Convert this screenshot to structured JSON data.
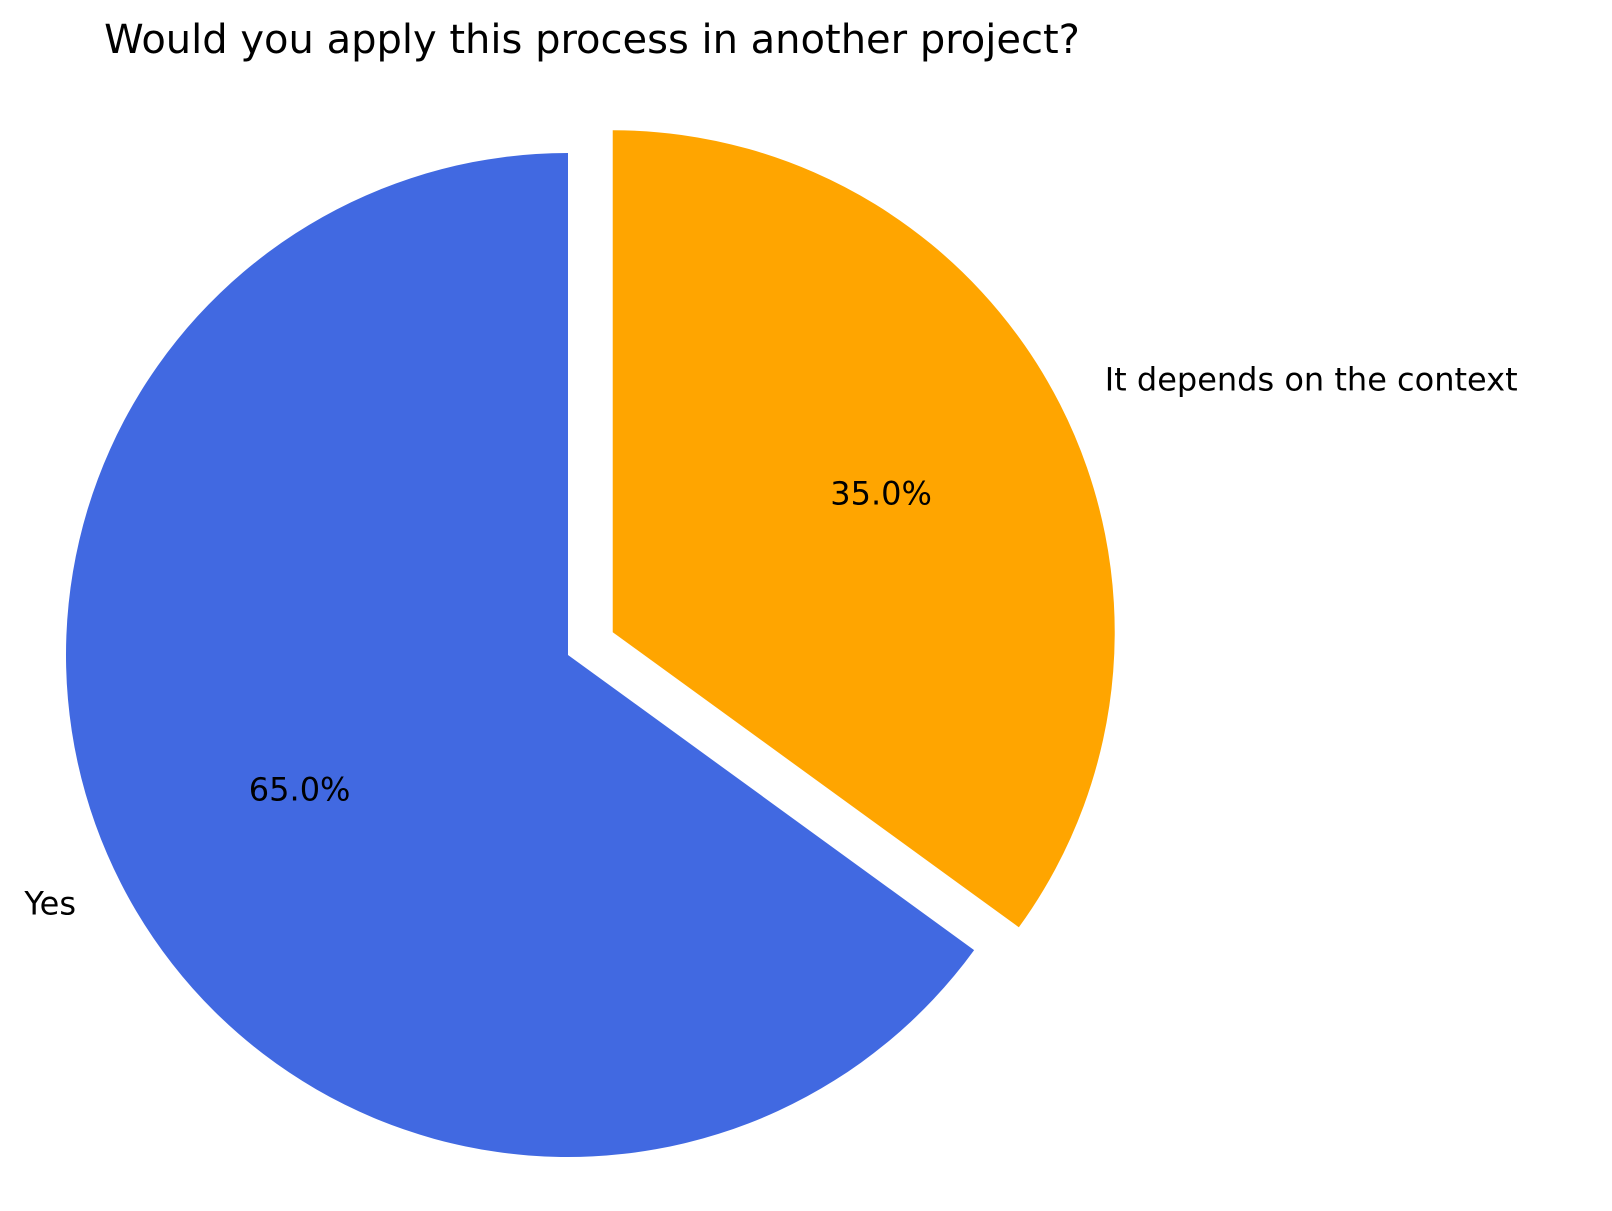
{
  "chart_data": {
    "type": "pie",
    "title": "Would you apply this process in another project?",
    "categories": [
      "Yes",
      "It depends on the context"
    ],
    "values": [
      65,
      35
    ],
    "value_labels": [
      "65.0%",
      "35.0%"
    ],
    "colors": [
      "#4169e1",
      "#ffa500"
    ],
    "explode": [
      0,
      0.1
    ]
  }
}
